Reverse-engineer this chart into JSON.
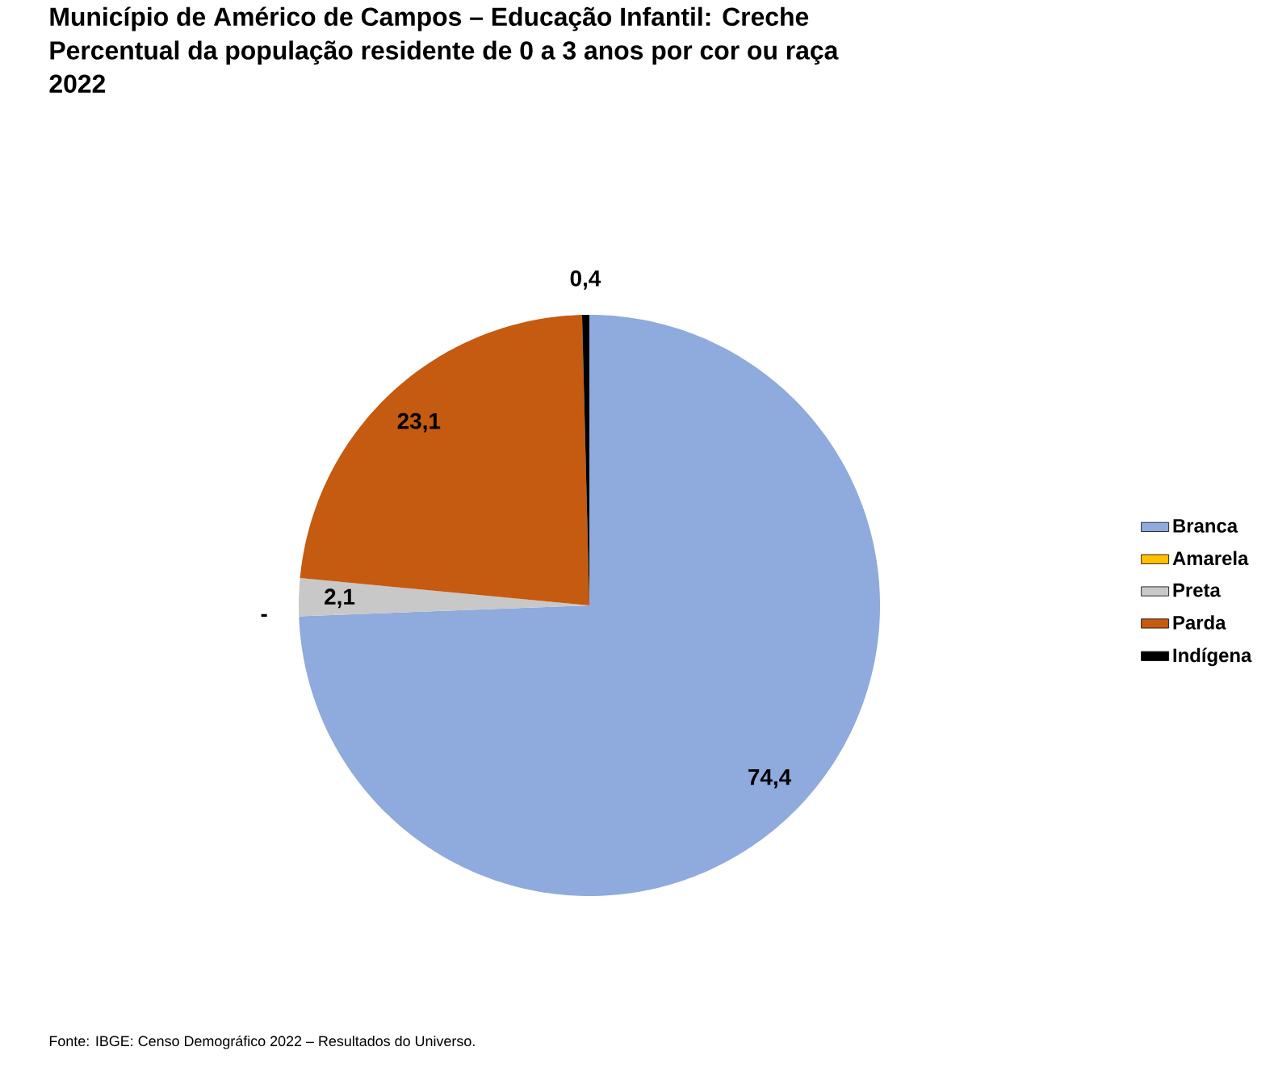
{
  "chart_data": {
    "type": "pie",
    "title": "Município de Américo de Campos – Educação Infantil: Creche",
    "subtitle": "Percentual da população residente de 0 a 3 anos por cor ou raça",
    "annotations": [
      "2022",
      "Fonte: IBGE: Censo Demográfico 2022 – Resultados do Universo."
    ],
    "categories": [
      "Branca",
      "Amarela",
      "Preta",
      "Parda",
      "Indígena"
    ],
    "values": [
      74.4,
      0,
      2.1,
      23.1,
      0.4
    ],
    "value_labels": [
      "74,4",
      "-",
      "2,1",
      "23,1",
      "0,4"
    ],
    "colors": [
      "#8faadc",
      "#ffc000",
      "#c8c8c8",
      "#c55a11",
      "#000000"
    ],
    "legend": "right"
  }
}
